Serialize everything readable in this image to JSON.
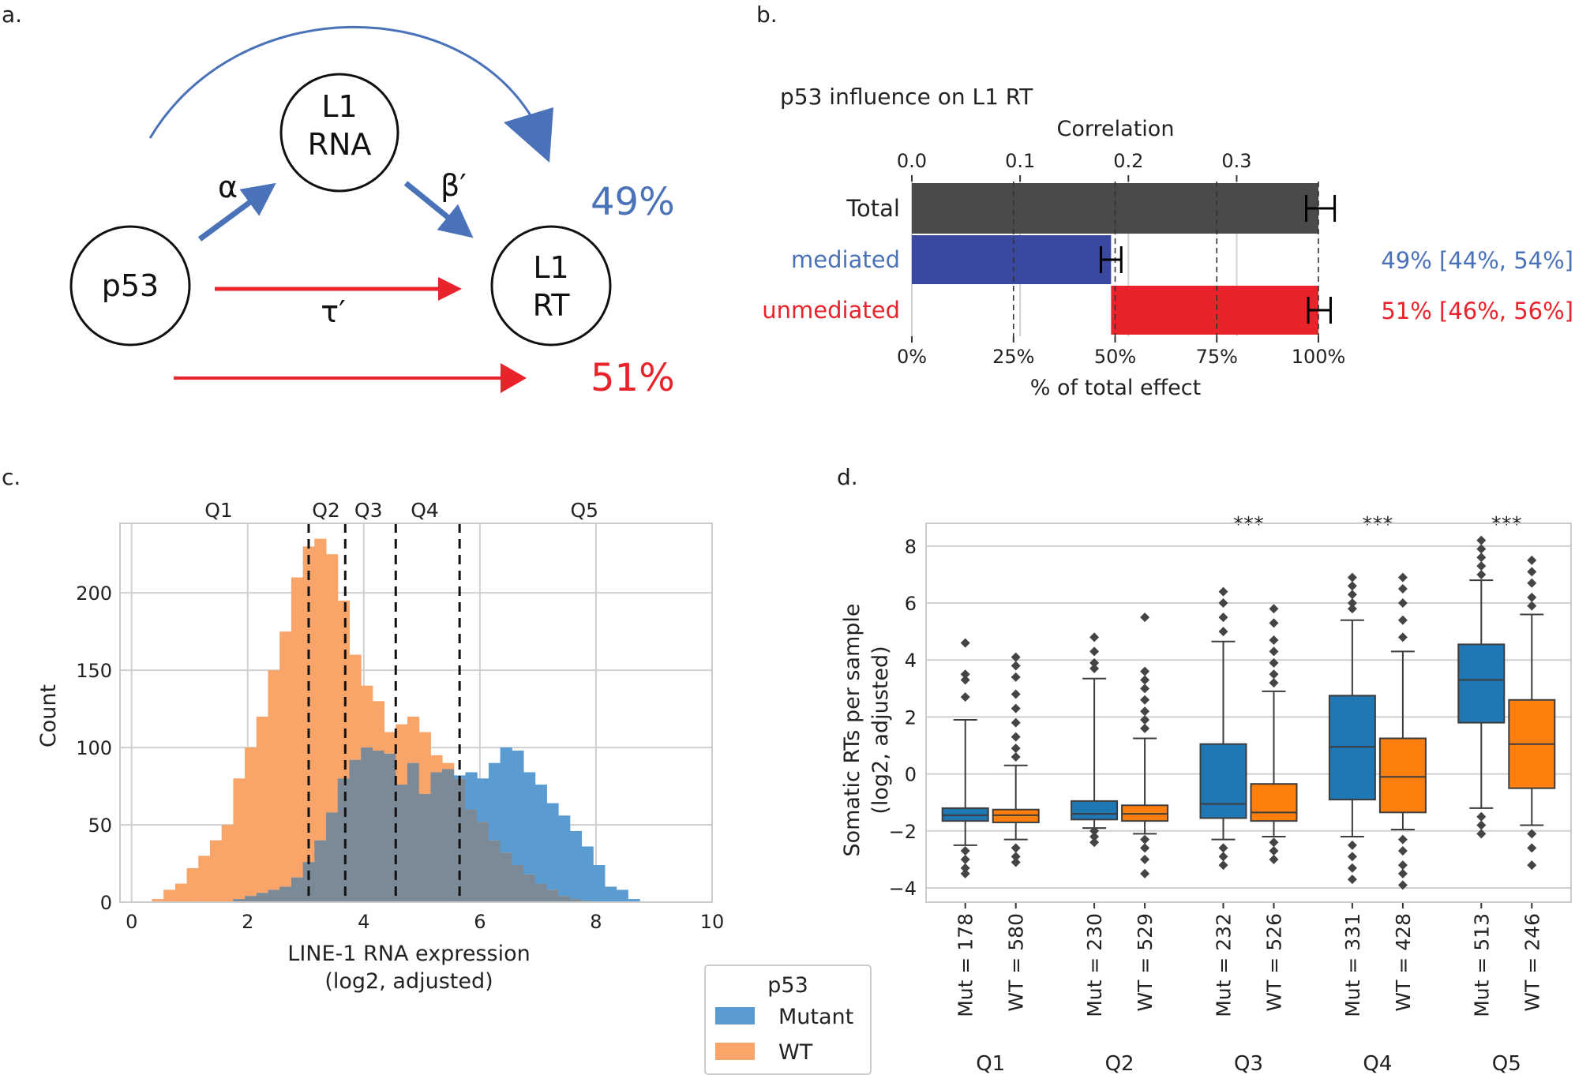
{
  "panels": {
    "a": "a.",
    "b": "b.",
    "c": "c.",
    "d": "d."
  },
  "colors": {
    "blue": "#4a72b8",
    "red": "#e8232b",
    "dark": "#4a4a4a",
    "mediated": "#3b48a0",
    "mutant": "#1f77b4",
    "wt": "#ff7f0e",
    "hist_mut": "#5a9bd1",
    "hist_wt": "#f9a56a",
    "hist_overlap": "#7c8a97"
  },
  "diagram": {
    "nodes": {
      "p53": "p53",
      "l1rna_1": "L1",
      "l1rna_2": "RNA",
      "l1rt_1": "L1",
      "l1rt_2": "RT"
    },
    "edges": {
      "alpha": "α",
      "beta": "β′",
      "tau": "τ′"
    },
    "pct_mediated": "49%",
    "pct_unmediated": "51%"
  },
  "chart_data": [
    {
      "type": "bar",
      "orientation": "horizontal",
      "title": "p53 influence on L1 RT",
      "top_axis": {
        "label": "Correlation",
        "ticks": [
          "0.0",
          "0.1",
          "0.2",
          "0.3"
        ],
        "values": [
          0,
          0.1,
          0.2,
          0.3
        ]
      },
      "bottom_axis": {
        "label": "% of total effect",
        "ticks": [
          "0%",
          "25%",
          "50%",
          "75%",
          "100%"
        ],
        "values": [
          0,
          25,
          50,
          75,
          100
        ]
      },
      "categories": [
        "Total",
        "mediated",
        "unmediated"
      ],
      "bars": [
        {
          "name": "Total",
          "start": 0,
          "end": 100,
          "err": [
            97,
            104
          ]
        },
        {
          "name": "mediated",
          "start": 0,
          "end": 49,
          "err": [
            46.5,
            51.5
          ]
        },
        {
          "name": "unmediated",
          "start": 49,
          "end": 100,
          "err": [
            97.5,
            103
          ]
        }
      ],
      "annotations": {
        "mediated": "49% [44%, 54%]",
        "unmediated": "51% [46%, 56%]"
      },
      "dashed_lines_pct": [
        25,
        50,
        75,
        100
      ]
    },
    {
      "type": "histogram",
      "xlabel_1": "LINE-1 RNA expression",
      "xlabel_2": "(log2, adjusted)",
      "ylabel": "Count",
      "xlim": [
        -0.2,
        10
      ],
      "ylim": [
        0,
        245
      ],
      "xticks": [
        0,
        2,
        4,
        6,
        8,
        10
      ],
      "yticks": [
        0,
        50,
        100,
        150,
        200
      ],
      "bin_start": 0.35,
      "bin_width": 0.2,
      "mutant": [
        0,
        0,
        0,
        0,
        0,
        0,
        0,
        2,
        4,
        6,
        8,
        10,
        16,
        26,
        40,
        58,
        80,
        92,
        100,
        98,
        96,
        76,
        90,
        70,
        84,
        86,
        82,
        84,
        80,
        90,
        100,
        98,
        84,
        76,
        64,
        56,
        46,
        36,
        24,
        10,
        8,
        2,
        0,
        0,
        0,
        0,
        0
      ],
      "wt": [
        2,
        8,
        12,
        22,
        30,
        40,
        50,
        80,
        100,
        120,
        150,
        175,
        210,
        230,
        235,
        225,
        195,
        160,
        140,
        130,
        110,
        115,
        120,
        110,
        95,
        90,
        80,
        60,
        52,
        40,
        32,
        24,
        18,
        12,
        8,
        4,
        2,
        1,
        0,
        0,
        0,
        0,
        0,
        0,
        0,
        0,
        0
      ],
      "mutant_tail": [
        40,
        30,
        12,
        10,
        8,
        2
      ],
      "quintile_cuts": [
        3.05,
        3.68,
        4.55,
        5.65
      ],
      "quintile_labels": [
        "Q1",
        "Q2",
        "Q3",
        "Q4",
        "Q5"
      ],
      "legend": {
        "title": "p53",
        "entries": [
          "Mutant",
          "WT"
        ]
      }
    },
    {
      "type": "boxplot",
      "ylabel_1": "Somatic RTs per sample",
      "ylabel_2": "(log2, adjusted)",
      "ylim": [
        -4.5,
        8.8
      ],
      "yticks": [
        -4,
        -2,
        0,
        2,
        4,
        6,
        8
      ],
      "groups": [
        {
          "name": "Q1",
          "sig": "",
          "boxes": [
            {
              "label": "Mut = 178",
              "q1": -1.65,
              "med": -1.45,
              "q3": -1.2,
              "wlo": -2.5,
              "whi": 1.9,
              "fliers": [
                4.6,
                3.5,
                3.3,
                2.7,
                -2.7,
                -3.0,
                -3.3,
                -3.5
              ]
            },
            {
              "label": "WT = 580",
              "q1": -1.7,
              "med": -1.45,
              "q3": -1.25,
              "wlo": -2.3,
              "whi": 0.3,
              "fliers": [
                4.1,
                3.8,
                3.4,
                2.8,
                2.3,
                1.8,
                1.3,
                0.9,
                0.6,
                -2.6,
                -2.9,
                -3.1
              ]
            }
          ]
        },
        {
          "name": "Q2",
          "sig": "",
          "boxes": [
            {
              "label": "Mut = 230",
              "q1": -1.6,
              "med": -1.4,
              "q3": -0.95,
              "wlo": -1.9,
              "whi": 3.35,
              "fliers": [
                4.8,
                4.3,
                3.9,
                3.7,
                -2.0,
                -2.2,
                -2.4
              ]
            },
            {
              "label": "WT = 529",
              "q1": -1.65,
              "med": -1.4,
              "q3": -1.1,
              "wlo": -2.1,
              "whi": 1.25,
              "fliers": [
                5.5,
                3.6,
                3.3,
                3.0,
                2.6,
                2.2,
                1.9,
                1.6,
                -2.3,
                -2.6,
                -3.0,
                -3.5
              ]
            }
          ]
        },
        {
          "name": "Q3",
          "sig": "***",
          "boxes": [
            {
              "label": "Mut = 232",
              "q1": -1.55,
              "med": -1.05,
              "q3": 1.05,
              "wlo": -2.3,
              "whi": 4.65,
              "fliers": [
                6.4,
                6.0,
                5.5,
                5.0,
                -2.6,
                -2.9,
                -3.2
              ]
            },
            {
              "label": "WT = 526",
              "q1": -1.65,
              "med": -1.35,
              "q3": -0.35,
              "wlo": -2.2,
              "whi": 2.9,
              "fliers": [
                5.8,
                5.3,
                4.7,
                4.3,
                3.9,
                3.5,
                3.2,
                -2.4,
                -2.7,
                -3.0
              ]
            }
          ]
        },
        {
          "name": "Q4",
          "sig": "***",
          "boxes": [
            {
              "label": "Mut = 331",
              "q1": -0.9,
              "med": 0.95,
              "q3": 2.75,
              "wlo": -2.2,
              "whi": 5.4,
              "fliers": [
                6.9,
                6.6,
                6.3,
                6.0,
                5.8,
                -2.5,
                -2.9,
                -3.3,
                -3.7
              ]
            },
            {
              "label": "WT = 428",
              "q1": -1.35,
              "med": -0.1,
              "q3": 1.25,
              "wlo": -1.95,
              "whi": 4.3,
              "fliers": [
                6.9,
                6.5,
                6.0,
                5.4,
                4.8,
                -2.3,
                -2.7,
                -3.2,
                -3.5,
                -3.9
              ]
            }
          ]
        },
        {
          "name": "Q5",
          "sig": "***",
          "boxes": [
            {
              "label": "Mut = 513",
              "q1": 1.8,
              "med": 3.3,
              "q3": 4.55,
              "wlo": -1.2,
              "whi": 6.8,
              "fliers": [
                8.2,
                7.9,
                7.6,
                7.3,
                7.0,
                -1.5,
                -1.8,
                -2.1
              ]
            },
            {
              "label": "WT = 246",
              "q1": -0.5,
              "med": 1.05,
              "q3": 2.6,
              "wlo": -1.8,
              "whi": 5.6,
              "fliers": [
                7.5,
                7.1,
                6.7,
                6.2,
                5.9,
                -2.1,
                -2.6,
                -3.2
              ]
            }
          ]
        }
      ]
    }
  ]
}
